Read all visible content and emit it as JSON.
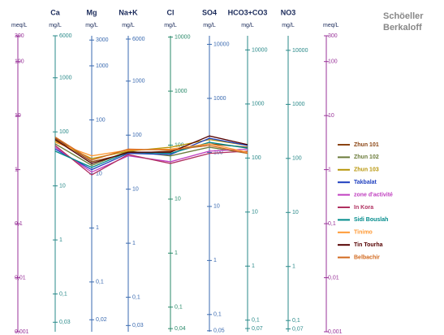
{
  "chart_data": {
    "type": "schoeller",
    "title_lines": [
      "Schöeller",
      "Berkaloff"
    ],
    "y_label": "meq/L",
    "y2_label": "meq/L",
    "log_scale": true,
    "axis_color": "#993399",
    "ylim": [
      0.001,
      300
    ],
    "yticks": [
      300,
      100,
      10,
      1,
      {
        "value": 0.1,
        "label": "0,1"
      },
      {
        "value": 0.01,
        "label": "0,01"
      },
      {
        "value": 0.001,
        "label": "0,001"
      }
    ],
    "y2lim": [
      0.001,
      300
    ],
    "y2ticks": [
      300,
      100,
      10,
      1,
      {
        "value": 0.1,
        "label": "0,1"
      },
      {
        "value": 0.01,
        "label": "0,01"
      },
      {
        "value": 0.001,
        "label": "0,001"
      }
    ],
    "categories": [
      "Ca",
      "Mg",
      "Na+K",
      "Cl",
      "SO4",
      "HCO3+CO3",
      "NO3"
    ],
    "column_axes": [
      {
        "unit": "mg/L",
        "color": "#2a8a8a",
        "ylim": [
          0.02,
          6000
        ],
        "yticks": [
          6000,
          1000,
          100,
          10,
          1,
          {
            "value": 0.1,
            "label": "0,1"
          },
          {
            "value": 0.03,
            "label": "0,03"
          }
        ]
      },
      {
        "unit": "mg/L",
        "color": "#3a6ab0",
        "ylim": [
          0.012,
          3600
        ],
        "yticks": [
          3000,
          1000,
          100,
          10,
          1,
          {
            "value": 0.1,
            "label": "0,1"
          },
          {
            "value": 0.02,
            "label": "0,02"
          }
        ]
      },
      {
        "unit": "mg/L",
        "color": "#3a6ab0",
        "ylim": [
          0.023,
          6900
        ],
        "yticks": [
          6000,
          1000,
          100,
          10,
          1,
          {
            "value": 0.1,
            "label": "0,1"
          },
          {
            "value": 0.03,
            "label": "0,03"
          }
        ]
      },
      {
        "unit": "mg/L",
        "color": "#2a8a6a",
        "ylim": [
          0.035,
          10600
        ],
        "yticks": [
          10000,
          1000,
          100,
          10,
          1,
          {
            "value": 0.1,
            "label": "0,1"
          },
          {
            "value": 0.04,
            "label": "0,04"
          }
        ]
      },
      {
        "unit": "mg/L",
        "color": "#3a6ab0",
        "ylim": [
          0.048,
          14400
        ],
        "yticks": [
          10000,
          1000,
          100,
          10,
          1,
          {
            "value": 0.1,
            "label": "0,1"
          },
          {
            "value": 0.05,
            "label": "0,05"
          }
        ]
      },
      {
        "unit": "mg/L",
        "color": "#2a8a8a",
        "ylim": [
          0.061,
          18300
        ],
        "yticks": [
          10000,
          1000,
          100,
          10,
          1,
          {
            "value": 0.1,
            "label": "0,1"
          },
          {
            "value": 0.07,
            "label": "0,07"
          }
        ]
      },
      {
        "unit": "mg/L",
        "color": "#2a8a8a",
        "ylim": [
          0.062,
          18600
        ],
        "yticks": [
          10000,
          1000,
          100,
          10,
          1,
          {
            "value": 0.1,
            "label": "0,1"
          },
          {
            "value": 0.07,
            "label": "0,07"
          }
        ]
      }
    ],
    "series": [
      {
        "name": "Zhun 101",
        "color": "#8b4513",
        "values": [
          3.8,
          1.4,
          2.0,
          2.2,
          3.0,
          2.6,
          null
        ]
      },
      {
        "name": "Zhun 102",
        "color": "#6b7b3a",
        "values": [
          3.0,
          1.2,
          2.2,
          1.8,
          2.6,
          2.0,
          null
        ]
      },
      {
        "name": "Zhun 103",
        "color": "#b8960b",
        "values": [
          3.4,
          1.6,
          2.2,
          2.6,
          3.6,
          2.8,
          null
        ]
      },
      {
        "name": "Takbalat",
        "color": "#1f3fbf",
        "values": [
          2.4,
          1.0,
          2.0,
          1.9,
          3.8,
          2.8,
          null
        ]
      },
      {
        "name": "zone d'activité",
        "color": "#c040c0",
        "values": [
          2.6,
          0.9,
          1.8,
          1.4,
          2.2,
          2.4,
          null
        ]
      },
      {
        "name": "In Kora",
        "color": "#b03060",
        "values": [
          2.8,
          0.8,
          1.9,
          1.3,
          2.0,
          2.2,
          null
        ]
      },
      {
        "name": "Sidi Bouslah",
        "color": "#008b8b",
        "values": [
          2.2,
          1.1,
          2.1,
          2.0,
          3.2,
          2.5,
          null
        ]
      },
      {
        "name": "Tinimo",
        "color": "#ff9933",
        "values": [
          3.2,
          1.8,
          2.3,
          2.4,
          3.0,
          2.1,
          null
        ]
      },
      {
        "name": "Tin Tourha",
        "color": "#550000",
        "values": [
          3.6,
          1.3,
          2.1,
          2.1,
          4.2,
          2.9,
          null
        ]
      },
      {
        "name": "Belbachir",
        "color": "#d2691e",
        "values": [
          4.0,
          1.5,
          2.4,
          2.3,
          2.8,
          2.0,
          null
        ]
      }
    ]
  }
}
